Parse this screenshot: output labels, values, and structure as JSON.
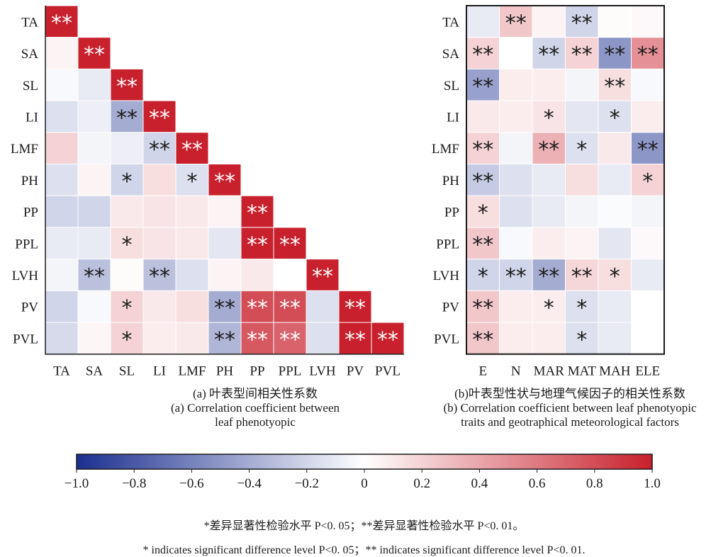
{
  "chart_data": [
    {
      "type": "heatmap",
      "panel": "a",
      "title": "",
      "xlabel": "",
      "ylabel": "",
      "layout": "lower-triangle",
      "rows": [
        "TA",
        "SA",
        "SL",
        "LI",
        "LMF",
        "PH",
        "PP",
        "PPL",
        "LVH",
        "PV",
        "PVL"
      ],
      "cols": [
        "TA",
        "SA",
        "SL",
        "LI",
        "LMF",
        "PH",
        "PP",
        "PPL",
        "LVH",
        "PV",
        "PVL"
      ],
      "values": [
        [
          1.0
        ],
        [
          0.05,
          1.0
        ],
        [
          -0.03,
          -0.1,
          1.0
        ],
        [
          -0.15,
          -0.08,
          -0.4,
          1.0
        ],
        [
          0.2,
          -0.05,
          -0.08,
          -0.2,
          1.0
        ],
        [
          -0.15,
          0.05,
          -0.2,
          0.15,
          -0.15,
          1.0
        ],
        [
          -0.2,
          -0.2,
          0.1,
          0.12,
          0.1,
          0.05,
          1.0
        ],
        [
          -0.1,
          -0.1,
          0.15,
          0.12,
          0.1,
          -0.12,
          1.0,
          1.0
        ],
        [
          -0.05,
          -0.3,
          0.02,
          -0.3,
          -0.15,
          0.05,
          0.1,
          0.0,
          1.0
        ],
        [
          -0.2,
          -0.03,
          0.2,
          0.1,
          0.15,
          -0.4,
          0.8,
          0.8,
          -0.15,
          1.0
        ],
        [
          -0.18,
          0.04,
          0.2,
          0.08,
          0.1,
          -0.35,
          0.75,
          0.7,
          -0.15,
          1.0,
          1.0
        ]
      ],
      "significance": [
        [
          "**"
        ],
        [
          "",
          "**"
        ],
        [
          "",
          "",
          "**"
        ],
        [
          "",
          "",
          "**",
          "**"
        ],
        [
          "",
          "",
          "",
          "**",
          "**"
        ],
        [
          "",
          "",
          "*",
          "",
          "*",
          "**"
        ],
        [
          "",
          "",
          "",
          "",
          "",
          "",
          "**"
        ],
        [
          "",
          "",
          "*",
          "",
          "",
          "",
          "**",
          "**"
        ],
        [
          "",
          "**",
          "",
          "**",
          "",
          "",
          "",
          "",
          "**"
        ],
        [
          "",
          "",
          "*",
          "",
          "",
          "**",
          "**",
          "**",
          "",
          "**"
        ],
        [
          "",
          "",
          "*",
          "",
          "",
          "**",
          "**",
          "**",
          "",
          "**",
          "**"
        ]
      ],
      "colorbar_range": [
        -1.0,
        1.0
      ]
    },
    {
      "type": "heatmap",
      "panel": "b",
      "title": "",
      "xlabel": "",
      "ylabel": "",
      "layout": "full",
      "rows": [
        "TA",
        "SA",
        "SL",
        "LI",
        "LMF",
        "PH",
        "PP",
        "PPL",
        "LVH",
        "PV",
        "PVL"
      ],
      "cols": [
        "E",
        "N",
        "MAR",
        "MAT",
        "MAH",
        "ELE"
      ],
      "values": [
        [
          -0.1,
          0.25,
          0.05,
          -0.2,
          0.02,
          0.03
        ],
        [
          0.2,
          0.0,
          -0.2,
          0.2,
          -0.5,
          0.5
        ],
        [
          -0.45,
          0.08,
          0.08,
          -0.05,
          0.15,
          -0.03
        ],
        [
          0.1,
          0.08,
          0.12,
          -0.12,
          -0.15,
          0.08
        ],
        [
          0.2,
          -0.05,
          0.35,
          -0.15,
          0.1,
          -0.5
        ],
        [
          -0.25,
          -0.15,
          -0.1,
          0.15,
          -0.1,
          0.2
        ],
        [
          0.15,
          -0.15,
          -0.1,
          -0.05,
          -0.02,
          -0.05
        ],
        [
          0.25,
          -0.03,
          0.08,
          0.05,
          -0.12,
          0.03
        ],
        [
          -0.2,
          -0.2,
          -0.4,
          0.18,
          0.15,
          -0.1
        ],
        [
          0.25,
          0.08,
          0.08,
          -0.15,
          -0.1,
          0.0
        ],
        [
          0.25,
          0.08,
          0.08,
          -0.15,
          -0.1,
          0.0
        ]
      ],
      "significance": [
        [
          "",
          "**",
          "",
          "**",
          "",
          ""
        ],
        [
          "**",
          "",
          "**",
          "**",
          "**",
          "**"
        ],
        [
          "**",
          "",
          "",
          "",
          "**",
          ""
        ],
        [
          "",
          "",
          "*",
          "",
          "*",
          ""
        ],
        [
          "**",
          "",
          "**",
          "*",
          "",
          "**"
        ],
        [
          "**",
          "",
          "",
          "",
          "",
          "*"
        ],
        [
          "*",
          "",
          "",
          "",
          "",
          ""
        ],
        [
          "**",
          "",
          "",
          "",
          "",
          ""
        ],
        [
          "*",
          "**",
          "**",
          "**",
          "*",
          ""
        ],
        [
          "**",
          "",
          "*",
          "*",
          "",
          ""
        ],
        [
          "**",
          "",
          "",
          "*",
          "",
          ""
        ]
      ],
      "colorbar_range": [
        -1.0,
        1.0
      ]
    }
  ],
  "colorbar": {
    "min": -1.0,
    "max": 1.0,
    "tick_values": [
      -1.0,
      -0.8,
      -0.6,
      -0.4,
      -0.2,
      0,
      0.2,
      0.4,
      0.6,
      0.8,
      1.0
    ],
    "tick_labels": [
      "−1.0",
      "−0.8",
      "−0.6",
      "−0.4",
      "−0.2",
      "0",
      "0.2",
      "0.4",
      "0.6",
      "0.8",
      "1.0"
    ],
    "colors": {
      "negative": "#1b2f8f",
      "neutral": "#ffffff",
      "positive": "#c8202c"
    }
  },
  "captions": {
    "a_cn": "(a) 叶表型间相关性系数",
    "a_en_line1": "(a) Correlation coefficient between",
    "a_en_line2": "leaf phenotyopic",
    "b_cn": "(b)叶表型性状与地理气候因子的相关性系数",
    "b_en_line1": "(b) Correlation coefficient between leaf phenotyopic",
    "b_en_line2": "traits and geotraphical meteorological factors"
  },
  "notes": {
    "cn": "*差异显著性检验水平 P<0. 05；**差异显著性检验水平 P<0. 01。",
    "en": "* indicates significant difference level P<0. 05；** indicates significant difference level P<0. 01."
  }
}
